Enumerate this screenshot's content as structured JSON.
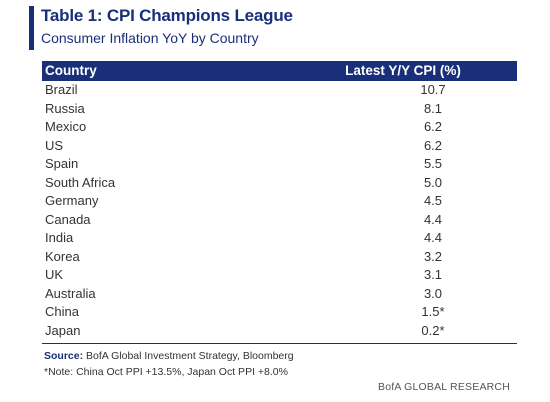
{
  "title": "Table 1: CPI Champions League",
  "subtitle": "Consumer Inflation YoY by Country",
  "colors": {
    "accent": "#1a2f7a"
  },
  "table": {
    "headers": [
      "Country",
      "Latest Y/Y CPI (%)"
    ],
    "rows": [
      [
        "Brazil",
        "10.7"
      ],
      [
        "Russia",
        "8.1"
      ],
      [
        "Mexico",
        "6.2"
      ],
      [
        "US",
        "6.2"
      ],
      [
        "Spain",
        "5.5"
      ],
      [
        "South Africa",
        "5.0"
      ],
      [
        "Germany",
        "4.5"
      ],
      [
        "Canada",
        "4.4"
      ],
      [
        "India",
        "4.4"
      ],
      [
        "Korea",
        "3.2"
      ],
      [
        "UK",
        "3.1"
      ],
      [
        "Australia",
        "3.0"
      ],
      [
        "China",
        "1.5*"
      ],
      [
        "Japan",
        "0.2*"
      ]
    ]
  },
  "source": {
    "label": "Source:",
    "text": "BofA Global Investment Strategy, Bloomberg"
  },
  "note": "*Note: China Oct PPI +13.5%, Japan Oct PPI +8.0%",
  "footer_brand": "BofA GLOBAL RESEARCH"
}
